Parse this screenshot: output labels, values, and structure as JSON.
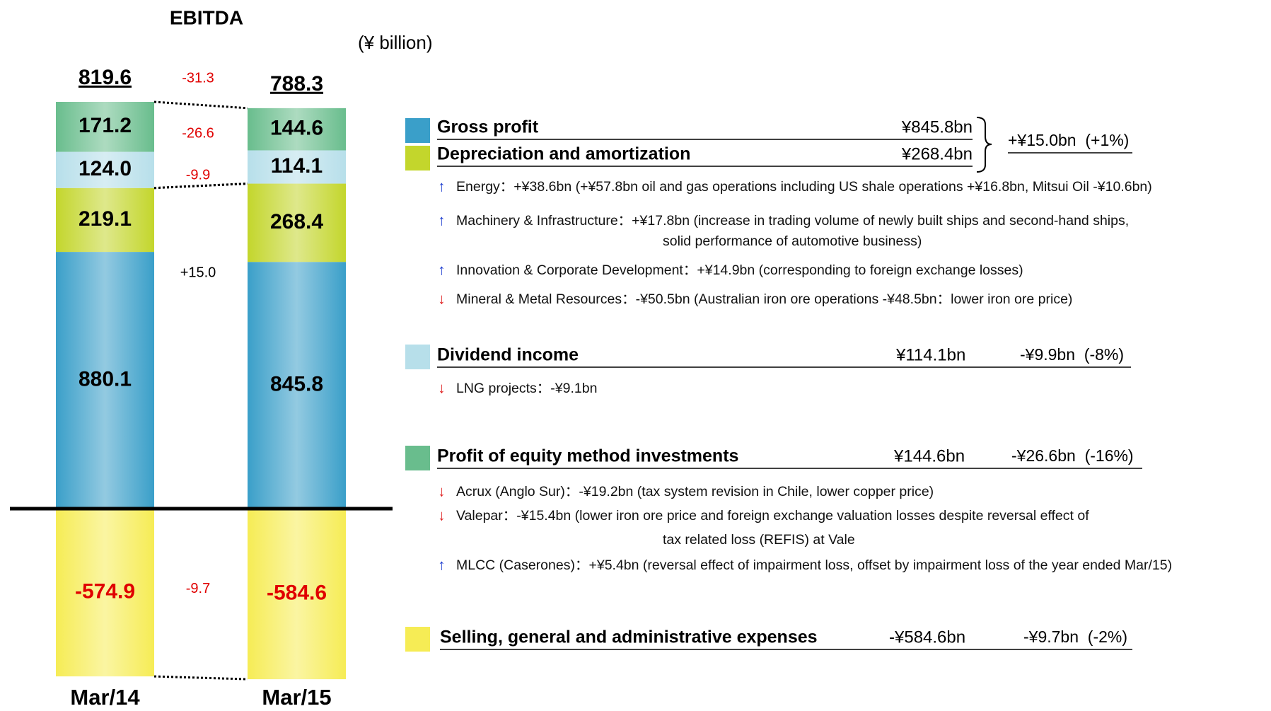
{
  "chart_data": {
    "type": "bar",
    "stacked": true,
    "title": "EBITDA",
    "unit": "(¥ billion)",
    "categories": [
      "Mar/14",
      "Mar/15"
    ],
    "totals": [
      819.6,
      788.3
    ],
    "series": [
      {
        "name": "Gross profit",
        "color": "#3a9fc9",
        "values": [
          880.1,
          845.8
        ]
      },
      {
        "name": "Depreciation and amortization",
        "color": "#c3d62c",
        "values": [
          219.1,
          268.4
        ]
      },
      {
        "name": "Dividend income",
        "color": "#b7dfea",
        "values": [
          124.0,
          114.1
        ],
        "value_labels": [
          "124.0",
          "114.1"
        ]
      },
      {
        "name": "Profit of equity method investments",
        "color": "#69bd8d",
        "values": [
          171.2,
          144.6
        ]
      },
      {
        "name": "Selling, general and administrative expenses",
        "color": "#f6ec55",
        "values": [
          -574.9,
          -584.6
        ]
      }
    ],
    "differences": {
      "values": [
        -31.3,
        15.0,
        -9.9,
        -26.6,
        -9.7
      ],
      "value_labels": [
        "-31.3",
        "+15.0",
        "-9.9",
        "-26.6",
        "-9.7"
      ]
    }
  },
  "breakdown": [
    {
      "items": [
        {
          "label": "Gross profit",
          "amount": "¥845.8bn"
        },
        {
          "label": "Depreciation and amortization",
          "amount": "¥268.4bn"
        }
      ],
      "change": "+¥15.0bn  (+1%)",
      "bullets": [
        {
          "arrow": "↑",
          "arrow_color": "#1f3fd0",
          "lines": [
            "Energy：+¥38.6bn (+¥57.8bn oil and gas operations including US shale operations +¥16.8bn, Mitsui Oil -¥10.6bn)"
          ]
        },
        {
          "arrow": "↑",
          "arrow_color": "#1f3fd0",
          "lines": [
            "Machinery & Infrastructure：+¥17.8bn (increase in trading volume of newly built ships and second-hand ships,",
            "solid performance of automotive business)"
          ]
        },
        {
          "arrow": "↑",
          "arrow_color": "#1f3fd0",
          "lines": [
            "Innovation & Corporate Development：+¥14.9bn (corresponding to foreign exchange losses)"
          ]
        },
        {
          "arrow": "↓",
          "arrow_color": "#e02020",
          "lines": [
            "Mineral & Metal Resources：-¥50.5bn (Australian iron ore operations -¥48.5bn：lower iron ore price)"
          ]
        }
      ]
    },
    {
      "items": [
        {
          "label": "Dividend income",
          "amount": "¥114.1bn"
        }
      ],
      "change": "-¥9.9bn  (-8%)",
      "bullets": [
        {
          "arrow": "↓",
          "arrow_color": "#e02020",
          "lines": [
            "LNG projects：-¥9.1bn"
          ]
        }
      ]
    },
    {
      "items": [
        {
          "label": "Profit of equity method investments",
          "amount": "¥144.6bn"
        }
      ],
      "change": "-¥26.6bn  (-16%)",
      "bullets": [
        {
          "arrow": "↓",
          "arrow_color": "#e02020",
          "lines": [
            "Acrux (Anglo Sur)：-¥19.2bn (tax system revision in Chile, lower copper price)"
          ]
        },
        {
          "arrow": "↓",
          "arrow_color": "#e02020",
          "lines": [
            "Valepar：-¥15.4bn (lower iron ore price and foreign exchange valuation losses despite reversal effect of",
            "tax related loss (REFIS) at Vale"
          ]
        },
        {
          "arrow": "↑",
          "arrow_color": "#1f3fd0",
          "lines": [
            "MLCC (Caserones)：+¥5.4bn (reversal effect of impairment loss, offset by impairment loss of the year ended Mar/15)"
          ]
        }
      ]
    },
    {
      "items": [
        {
          "label": "Selling, general and administrative expenses",
          "amount": "-¥584.6bn"
        }
      ],
      "change": "-¥9.7bn  (-2%)",
      "bullets": []
    }
  ]
}
